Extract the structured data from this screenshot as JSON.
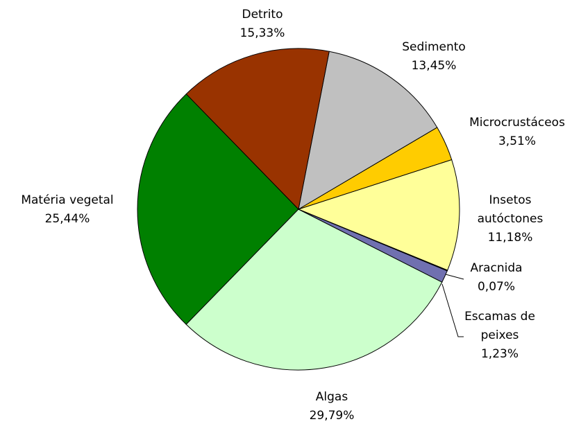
{
  "chart_data": {
    "type": "pie",
    "categories": [
      "Detrito",
      "Sedimento",
      "Microcrustáceos",
      "Insetos autóctones",
      "Aracnida",
      "Escamas de peixes",
      "Algas",
      "Matéria vegetal"
    ],
    "values": [
      15.33,
      13.45,
      3.51,
      11.18,
      0.07,
      1.23,
      29.79,
      25.44
    ],
    "value_labels": [
      "15,33%",
      "13,45%",
      "3,51%",
      "11,18%",
      "0,07%",
      "1,23%",
      "29,79%",
      "25,44%"
    ],
    "colors": [
      "#993300",
      "#c0c0c0",
      "#ffcc00",
      "#ffff99",
      "#333399",
      "#7070b0",
      "#ccffcc",
      "#008000"
    ]
  }
}
